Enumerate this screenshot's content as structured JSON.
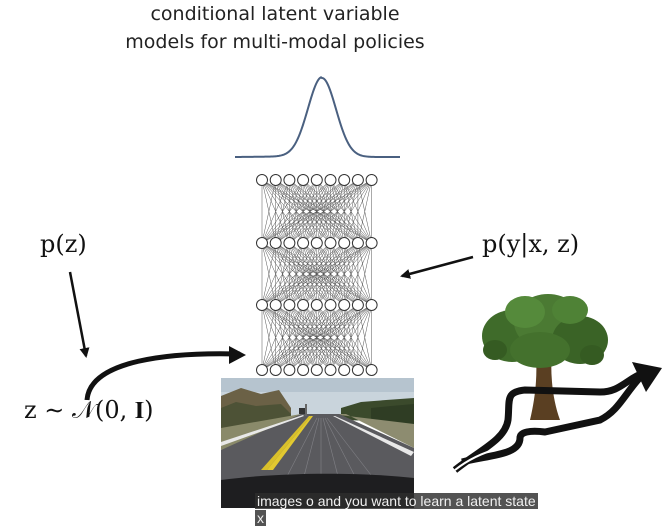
{
  "title": {
    "line1": "conditional latent variable",
    "line2": "models for multi-modal policies"
  },
  "labels": {
    "prior": "p(z)",
    "policy": "p(y|x, z)",
    "sample": "z ∼ 𝒩(0, 𝐈)"
  },
  "network": {
    "layers": [
      9,
      9,
      9,
      9
    ]
  },
  "caption": "images o and you want to learn a latent state x",
  "colors": {
    "gaussian_curve": "#4a6080",
    "arrows": "#111111",
    "foliage": "#3f6b2a",
    "trunk": "#5a3f22",
    "road_sky": "#c9d4dc",
    "asphalt": "#5a5a5e"
  },
  "icons": {
    "tree": "tree-icon",
    "road": "road-photo",
    "paths": "multimodal-paths-arrow"
  }
}
